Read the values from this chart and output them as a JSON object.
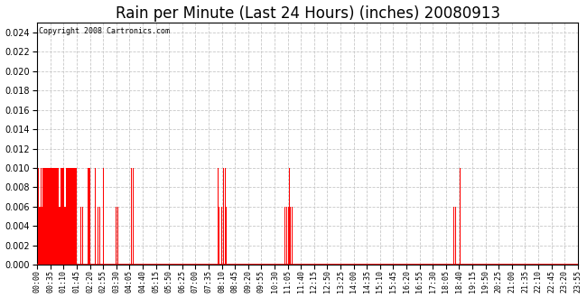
{
  "title": "Rain per Minute (Last 24 Hours) (inches) 20080913",
  "copyright_text": "Copyright 2008 Cartronics.com",
  "bar_color": "#ff0000",
  "background_color": "#ffffff",
  "ylim": [
    0.0,
    0.025
  ],
  "yticks": [
    0.0,
    0.002,
    0.004,
    0.006,
    0.008,
    0.01,
    0.012,
    0.014,
    0.016,
    0.018,
    0.02,
    0.022,
    0.024
  ],
  "grid_color": "#c8c8c8",
  "grid_style": "--",
  "title_fontsize": 12,
  "tick_fontsize": 6,
  "x_tick_labels": [
    "00:00",
    "00:35",
    "01:10",
    "01:45",
    "02:20",
    "02:55",
    "03:30",
    "04:05",
    "04:40",
    "05:15",
    "05:50",
    "06:25",
    "07:00",
    "07:35",
    "08:10",
    "08:45",
    "09:20",
    "09:55",
    "10:30",
    "11:05",
    "11:40",
    "12:15",
    "12:50",
    "13:25",
    "14:00",
    "14:35",
    "15:10",
    "15:45",
    "16:20",
    "16:55",
    "17:30",
    "18:05",
    "18:40",
    "19:15",
    "19:50",
    "20:25",
    "21:00",
    "21:35",
    "22:10",
    "22:45",
    "23:20",
    "23:55"
  ],
  "total_minutes": 1440,
  "rain_minutes_hi": [
    1,
    2,
    3,
    4,
    5,
    7,
    9,
    10,
    12,
    14,
    15,
    17,
    18,
    19,
    20,
    21,
    22,
    23,
    25,
    27,
    28,
    29,
    30,
    31,
    32,
    33,
    34,
    35,
    36,
    37,
    38,
    39,
    41,
    42,
    43,
    44,
    45,
    46,
    47,
    48,
    49,
    50,
    51,
    53,
    54,
    55,
    56,
    57,
    58,
    62,
    63,
    65,
    66,
    67,
    68,
    70,
    71,
    72,
    74,
    77,
    78,
    79,
    80,
    81,
    82,
    83,
    84,
    85,
    86,
    87,
    88,
    89,
    90,
    91,
    92,
    94,
    95,
    96,
    97,
    98,
    99,
    100,
    101,
    102,
    104,
    105,
    108,
    115,
    117,
    118,
    120,
    122,
    134,
    135,
    138,
    140,
    141,
    155,
    160,
    161,
    166,
    175,
    176,
    211,
    216,
    251,
    256,
    291,
    480,
    481,
    483,
    485,
    492,
    493,
    496,
    497,
    500,
    501,
    504,
    505,
    660,
    661,
    665,
    666,
    670,
    671,
    675,
    680,
    1110,
    1115,
    1125,
    1126
  ],
  "rain_minutes_lo": [
    0,
    6,
    8,
    11,
    13,
    16,
    24,
    26,
    40,
    52,
    59,
    60,
    61,
    64,
    69,
    73,
    75,
    76,
    93,
    103,
    110,
    116,
    121,
    136,
    139,
    156,
    162,
    167,
    177,
    210,
    215,
    250,
    255,
    290,
    482,
    484,
    491,
    495,
    499,
    503,
    659,
    664,
    669,
    674,
    679,
    1109,
    1114,
    1124
  ]
}
